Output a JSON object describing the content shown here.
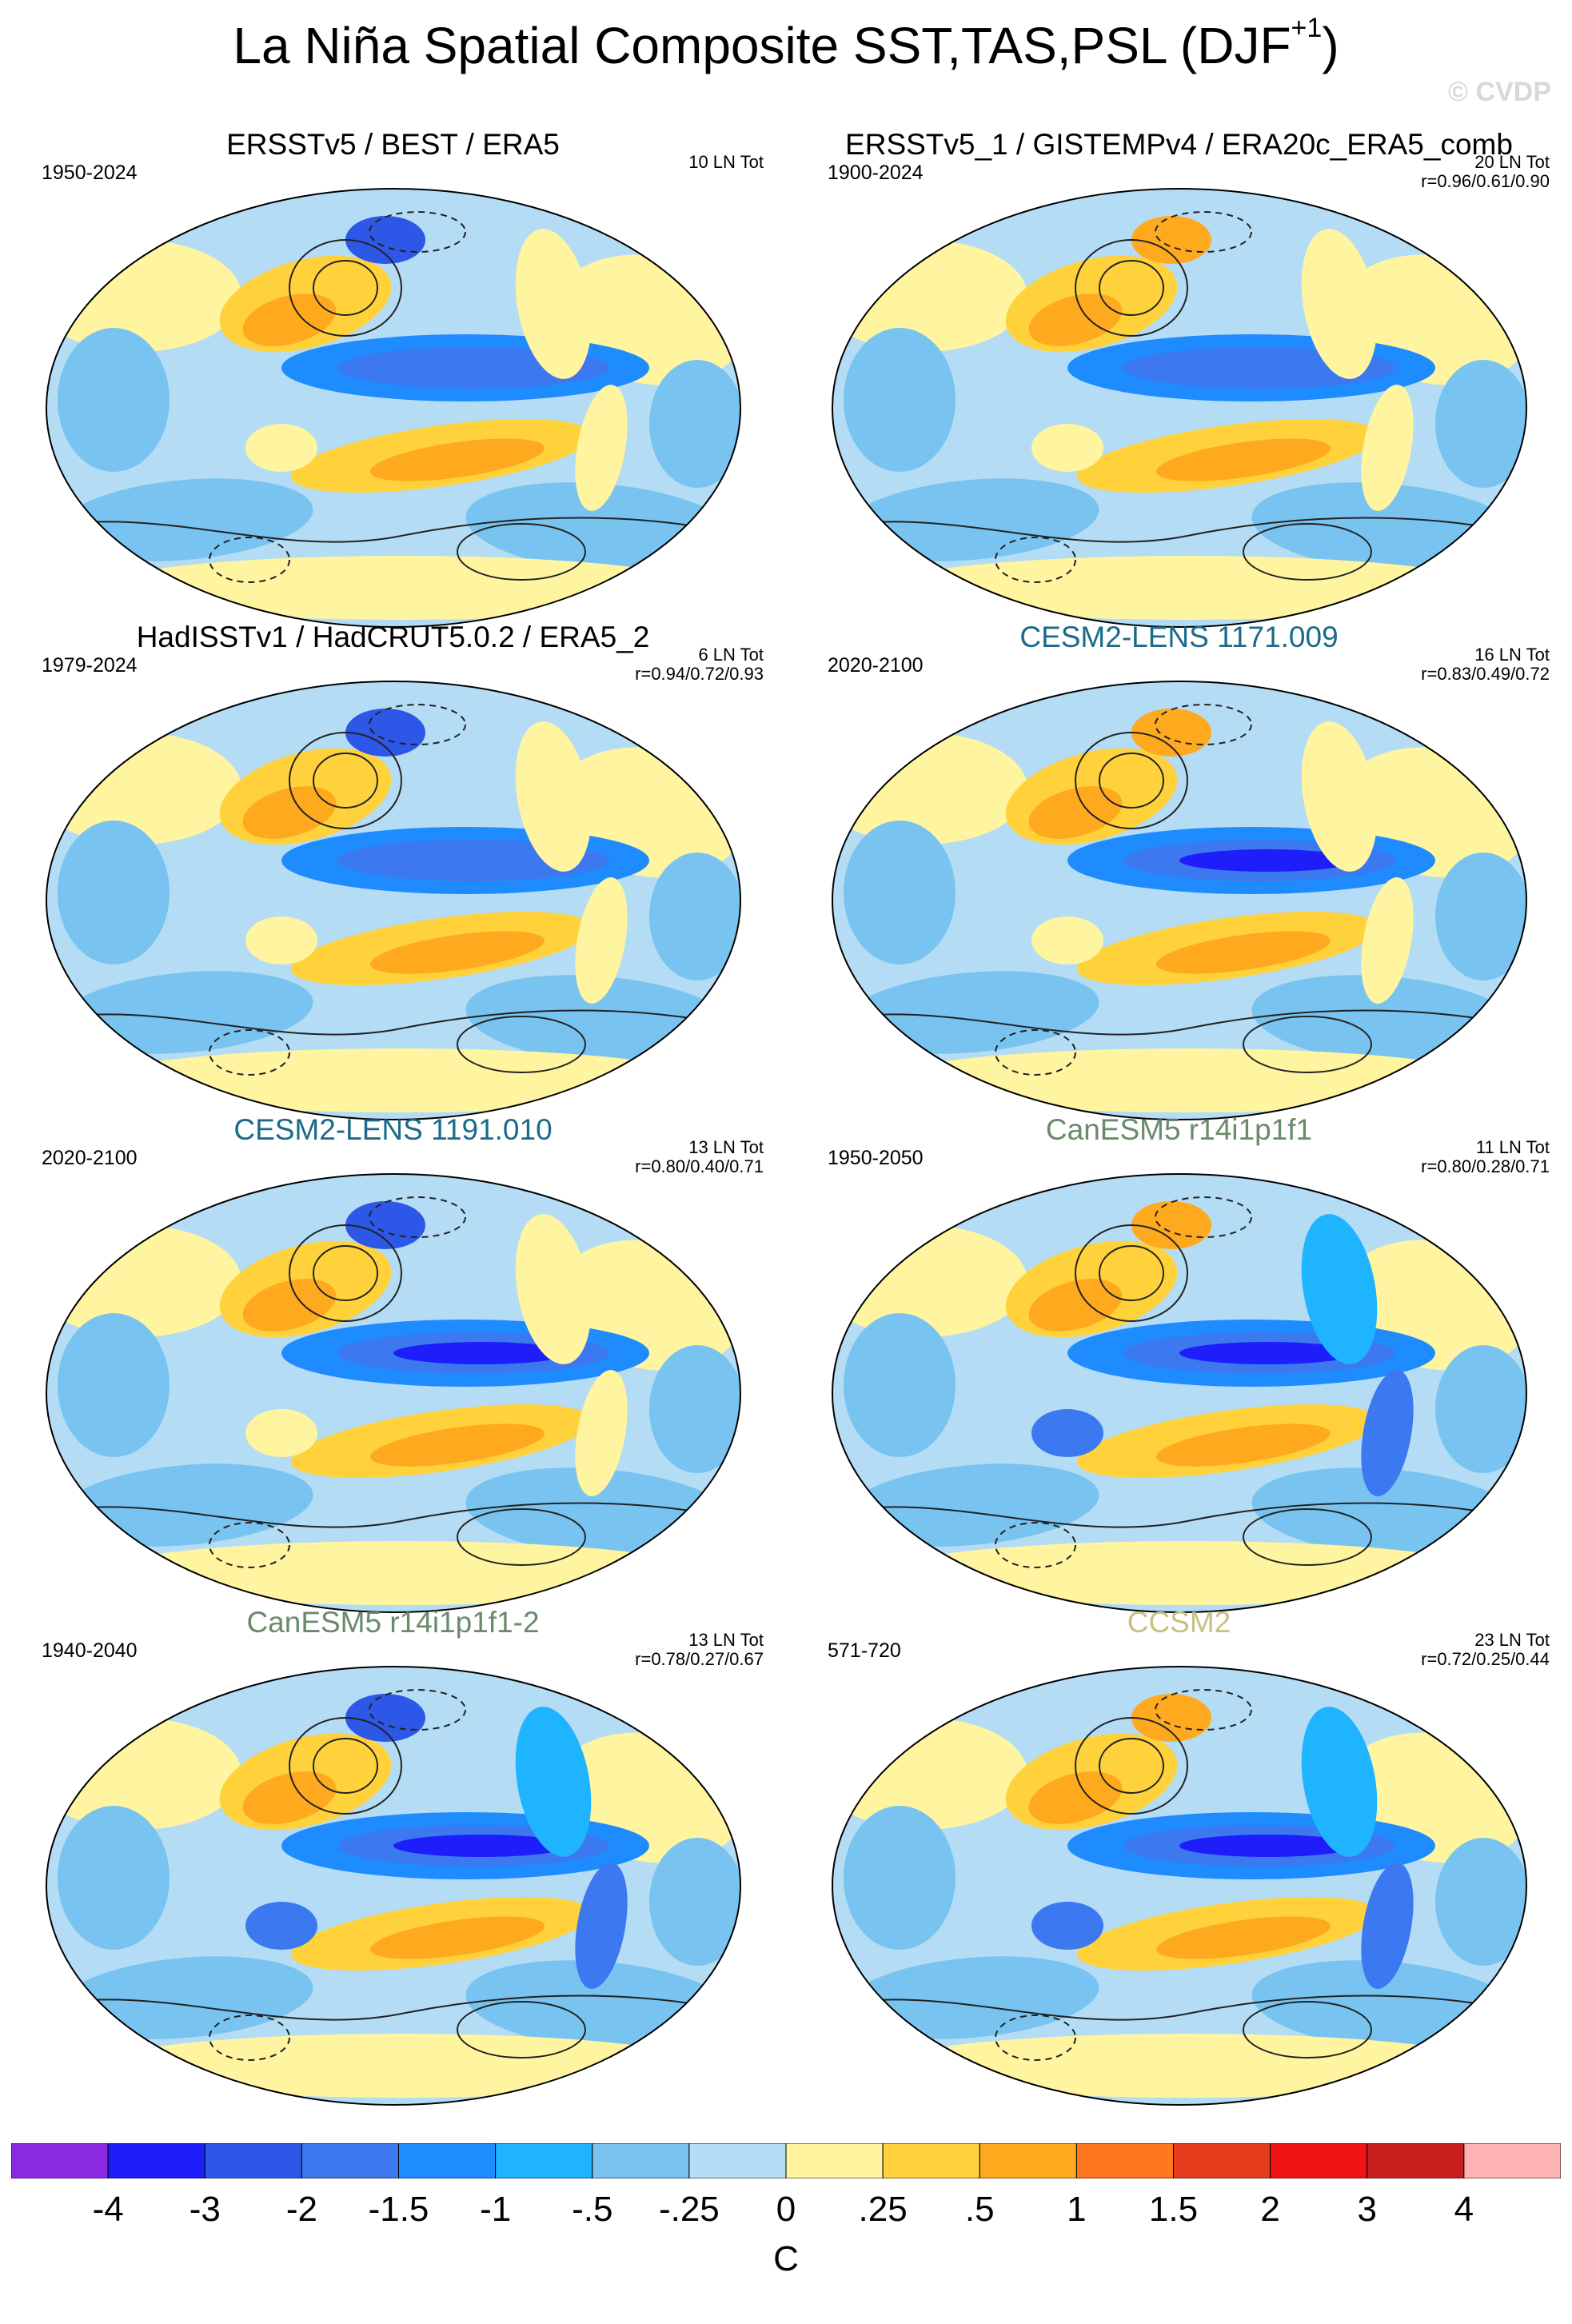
{
  "title": {
    "main": "La Niña Spatial Composite SST,TAS,PSL (DJF",
    "sup": "+1",
    "close": ")"
  },
  "watermark": "© CVDP",
  "panels": [
    {
      "title": "ERSSTv5 / BEST / ERA5",
      "period": "1950-2024",
      "count": "10 LN Tot",
      "r": "",
      "title_color": "#000000"
    },
    {
      "title": "ERSSTv5_1 / GISTEMPv4 / ERA20c_ERA5_comb",
      "period": "1900-2024",
      "count": "20 LN Tot",
      "r": "r=0.96/0.61/0.90",
      "title_color": "#000000"
    },
    {
      "title": "HadISSTv1 / HadCRUT5.0.2 / ERA5_2",
      "period": "1979-2024",
      "count": "6 LN Tot",
      "r": "r=0.94/0.72/0.93",
      "title_color": "#000000"
    },
    {
      "title": "CESM2-LENS 1171.009",
      "period": "2020-2100",
      "count": "16 LN Tot",
      "r": "r=0.83/0.49/0.72",
      "title_color": "#1a6b8a"
    },
    {
      "title": "CESM2-LENS 1191.010",
      "period": "2020-2100",
      "count": "13 LN Tot",
      "r": "r=0.80/0.40/0.71",
      "title_color": "#1a6b8a"
    },
    {
      "title": "CanESM5 r14i1p1f1",
      "period": "1950-2050",
      "count": "11 LN Tot",
      "r": "r=0.80/0.28/0.71",
      "title_color": "#6b8a6b"
    },
    {
      "title": "CanESM5 r14i1p1f1-2",
      "period": "1940-2040",
      "count": "13 LN Tot",
      "r": "r=0.78/0.27/0.67",
      "title_color": "#6b8a6b"
    },
    {
      "title": "CCSM2",
      "period": "571-720",
      "count": "23 LN Tot",
      "r": "r=0.72/0.25/0.44",
      "title_color": "#c8c080"
    }
  ],
  "chart_data": {
    "type": "heatmap",
    "title": "La Niña Spatial Composite SST,TAS,PSL (DJF+1)",
    "panels": 8,
    "colorbar": {
      "unit": "C",
      "levels": [
        "-4",
        "-3",
        "-2",
        "-1.5",
        "-1",
        "-.5",
        "-.25",
        "0",
        ".25",
        ".5",
        "1",
        "1.5",
        "2",
        "3",
        "4"
      ],
      "colors": [
        "#8a2be2",
        "#1e1efa",
        "#2d57e6",
        "#3c78f0",
        "#1e8cff",
        "#1eb4ff",
        "#78c3f0",
        "#b4dcf5",
        "#fff5a0",
        "#ffd23c",
        "#ffaa1e",
        "#ff781e",
        "#e63c1e",
        "#f01414",
        "#c81e1e",
        "#ffb4b4"
      ]
    }
  }
}
